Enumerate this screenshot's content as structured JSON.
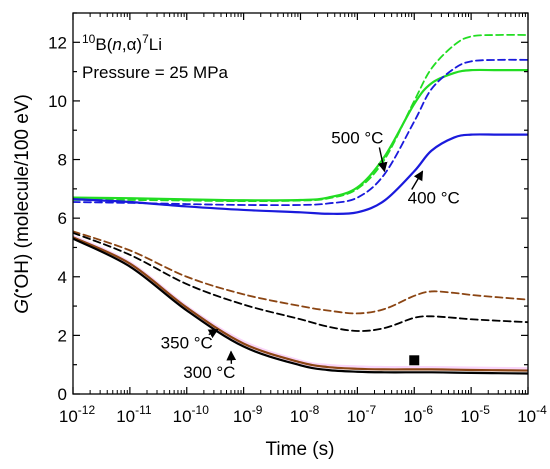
{
  "chart_data": {
    "type": "line",
    "xlabel": "Time (s)",
    "ylabel": "G(•OH) (molecule/100 eV)",
    "ylabel_parts": {
      "italic": "G",
      "paren": "(",
      "dot": "•",
      "species": "OH",
      "close": ")",
      "units": " (molecule/100 eV)"
    },
    "xscale": "log",
    "xlim": [
      1e-12,
      0.0001
    ],
    "ylim": [
      0,
      13
    ],
    "xticks": [
      {
        "base": "10",
        "exp": "-12",
        "value": 1e-12
      },
      {
        "base": "10",
        "exp": "-11",
        "value": 1e-11
      },
      {
        "base": "10",
        "exp": "-10",
        "value": 1e-10
      },
      {
        "base": "10",
        "exp": "-9",
        "value": 1e-09
      },
      {
        "base": "10",
        "exp": "-8",
        "value": 1e-08
      },
      {
        "base": "10",
        "exp": "-7",
        "value": 1e-07
      },
      {
        "base": "10",
        "exp": "-6",
        "value": 1e-06
      },
      {
        "base": "10",
        "exp": "-5",
        "value": 1e-05
      },
      {
        "base": "10",
        "exp": "-4",
        "value": 0.0001
      }
    ],
    "yticks": [
      "0",
      "2",
      "4",
      "6",
      "8",
      "10",
      "12"
    ],
    "ytick_values": [
      0,
      2,
      4,
      6,
      8,
      10,
      12
    ],
    "grid": false,
    "reaction_label": {
      "b_mass": "10",
      "b": "B(",
      "n": "n",
      "comma": ",",
      "alpha": "α",
      "close": ")",
      "li_mass": "7",
      "li": "Li"
    },
    "pressure_label": "Pressure = 25 MPa",
    "x": [
      1e-12,
      1e-11,
      1e-10,
      1e-09,
      1e-08,
      3e-08,
      1e-07,
      3e-07,
      1e-06,
      2e-06,
      5e-06,
      1e-05,
      3e-05,
      0.0001
    ],
    "series": [
      {
        "color": "#22dd22",
        "dash": "solid",
        "values": [
          6.7,
          6.68,
          6.64,
          6.61,
          6.62,
          6.7,
          7.05,
          8.1,
          9.9,
          10.6,
          10.95,
          11.05,
          11.05,
          11.05
        ]
      },
      {
        "color": "#22dd22",
        "dash": "dashed",
        "values": [
          6.62,
          6.62,
          6.6,
          6.58,
          6.6,
          6.67,
          7.0,
          8.0,
          10.0,
          11.1,
          11.9,
          12.2,
          12.25,
          12.25
        ]
      },
      {
        "color": "#1a1adc",
        "dash": "solid",
        "values": [
          6.65,
          6.55,
          6.4,
          6.28,
          6.2,
          6.15,
          6.2,
          6.6,
          7.6,
          8.3,
          8.75,
          8.85,
          8.85,
          8.85
        ]
      },
      {
        "color": "#1a1adc",
        "dash": "dashed",
        "values": [
          6.55,
          6.52,
          6.48,
          6.45,
          6.45,
          6.5,
          6.7,
          7.5,
          9.3,
          10.4,
          11.1,
          11.35,
          11.4,
          11.4
        ]
      },
      {
        "color": "#8b4513",
        "dash": "dashed",
        "values": [
          5.55,
          4.9,
          4.0,
          3.4,
          3.0,
          2.85,
          2.75,
          2.9,
          3.35,
          3.5,
          3.45,
          3.38,
          3.3,
          3.22
        ]
      },
      {
        "color": "#000000",
        "dash": "dashed",
        "values": [
          5.5,
          4.75,
          3.75,
          3.05,
          2.55,
          2.3,
          2.15,
          2.25,
          2.6,
          2.65,
          2.6,
          2.55,
          2.5,
          2.45
        ]
      },
      {
        "color": "#ee88ee",
        "dash": "solid",
        "width": 4.5,
        "values": [
          5.35,
          4.45,
          2.95,
          1.75,
          1.1,
          0.95,
          0.9,
          0.88,
          0.88,
          0.88,
          0.87,
          0.86,
          0.85,
          0.84
        ]
      },
      {
        "color": "#8b4513",
        "dash": "solid",
        "values": [
          5.35,
          4.45,
          2.95,
          1.72,
          1.08,
          0.92,
          0.86,
          0.84,
          0.84,
          0.84,
          0.83,
          0.82,
          0.81,
          0.8
        ]
      },
      {
        "color": "#000000",
        "dash": "solid",
        "values": [
          5.3,
          4.35,
          2.85,
          1.62,
          0.98,
          0.82,
          0.76,
          0.74,
          0.74,
          0.74,
          0.73,
          0.72,
          0.71,
          0.7
        ]
      }
    ],
    "marker": {
      "x": 1e-06,
      "y": 1.15,
      "shape": "square",
      "color": "#000000"
    },
    "annotations": [
      {
        "text": "500 °C",
        "x": 1e-07,
        "y": 8.55,
        "arrow_to": {
          "x": 3e-07,
          "y": 7.6
        }
      },
      {
        "text": "400 °C",
        "x": 2.2e-06,
        "y": 6.5,
        "arrow_to": {
          "x": 1.4e-06,
          "y": 7.6
        }
      },
      {
        "text": "350 °C",
        "x": 1e-10,
        "y": 1.55,
        "arrow_to": {
          "x": 3.5e-10,
          "y": 2.2
        }
      },
      {
        "text": "300 °C",
        "x": 2.5e-10,
        "y": 0.55,
        "arrow_to": {
          "x": 6e-10,
          "y": 1.45
        }
      }
    ]
  }
}
